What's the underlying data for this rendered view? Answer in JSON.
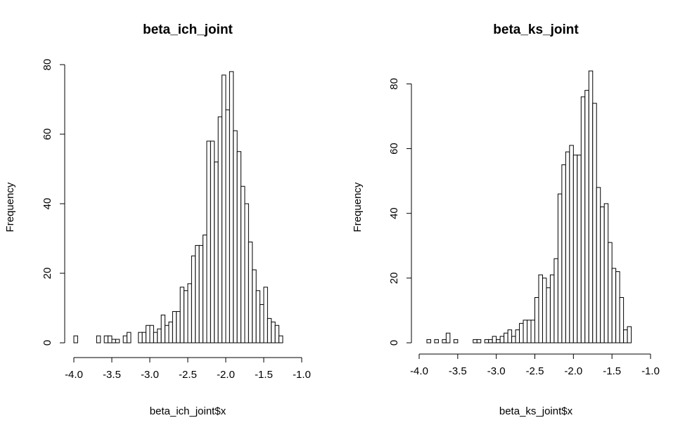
{
  "chart_data": [
    {
      "type": "bar",
      "title": "beta_ich_joint",
      "xlabel": "beta_ich_joint$x",
      "ylabel": "Frequency",
      "xlim": [
        -4.0,
        -1.0
      ],
      "ylim": [
        0,
        80
      ],
      "x_ticks": [
        "-4.0",
        "-3.5",
        "-3.0",
        "-2.5",
        "-2.0",
        "-1.5",
        "-1.0"
      ],
      "y_ticks": [
        "0",
        "20",
        "40",
        "60",
        "80"
      ],
      "bin_start": -4.0,
      "bin_width": 0.05,
      "values": [
        2,
        0,
        0,
        0,
        0,
        0,
        2,
        0,
        2,
        2,
        1,
        1,
        0,
        2,
        3,
        0,
        0,
        3,
        3,
        5,
        5,
        3,
        4,
        8,
        5,
        6,
        9,
        9,
        16,
        15,
        17,
        25,
        28,
        28,
        31,
        58,
        58,
        52,
        65,
        77,
        67,
        78,
        61,
        55,
        45,
        40,
        29,
        21,
        15,
        11,
        16,
        7,
        6,
        5,
        2
      ]
    },
    {
      "type": "bar",
      "title": "beta_ks_joint",
      "xlabel": "beta_ks_joint$x",
      "ylabel": "Frequency",
      "xlim": [
        -4.0,
        -1.0
      ],
      "ylim": [
        0,
        84
      ],
      "x_ticks": [
        "-4.0",
        "-3.5",
        "-3.0",
        "-2.5",
        "-2.0",
        "-1.5",
        "-1.0"
      ],
      "y_ticks": [
        "0",
        "20",
        "40",
        "60",
        "80"
      ],
      "bin_start": -3.9,
      "bin_width": 0.05,
      "values": [
        1,
        0,
        1,
        0,
        1,
        3,
        0,
        1,
        0,
        0,
        0,
        0,
        1,
        1,
        0,
        1,
        1,
        2,
        1,
        2,
        3,
        4,
        2,
        4,
        6,
        7,
        7,
        7,
        14,
        21,
        20,
        17,
        21,
        26,
        46,
        55,
        59,
        61,
        58,
        58,
        76,
        78,
        84,
        74,
        48,
        42,
        43,
        31,
        23,
        22,
        14,
        4,
        5
      ]
    }
  ]
}
